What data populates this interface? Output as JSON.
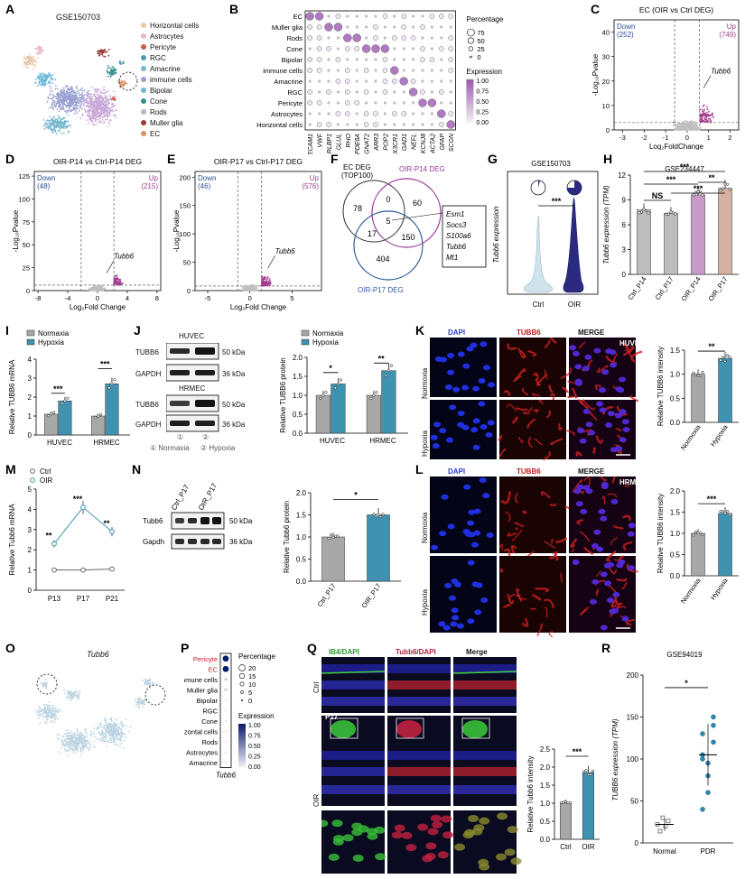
{
  "panels": {
    "A": {
      "letter": "A",
      "title": "GSE150703",
      "legend": [
        {
          "label": "Horizontal cells",
          "color": "#e6c8a8"
        },
        {
          "label": "Astrocytes",
          "color": "#e8b8c8"
        },
        {
          "label": "Pericyte",
          "color": "#c85a4a"
        },
        {
          "label": "RGC",
          "color": "#4aa0a8"
        },
        {
          "label": "Amacrine",
          "color": "#78b8d0"
        },
        {
          "label": "immune cells",
          "color": "#98a0d0"
        },
        {
          "label": "Bipolar",
          "color": "#68b8d8"
        },
        {
          "label": "Cone",
          "color": "#3a9090"
        },
        {
          "label": "Rods",
          "color": "#c8a8d8"
        },
        {
          "label": "Muller glia",
          "color": "#9a3a3a"
        },
        {
          "label": "EC",
          "color": "#d89060"
        }
      ]
    },
    "B": {
      "letter": "B",
      "rows": [
        "EC",
        "Muller glia",
        "Rods",
        "Cone",
        "Bipolar",
        "immune cells",
        "Amacrine",
        "RGC",
        "Pericyte",
        "Astrocytes",
        "Horizontal cells"
      ],
      "cols": [
        "PECAM1",
        "VWF",
        "RLBP1",
        "GLUL",
        "RHO",
        "PDE6A",
        "GNAT2",
        "ARR3",
        "POP2",
        "CX3CR1",
        "GAD1",
        "NEFL",
        "KCNJ8",
        "ACTA2",
        "GFAP",
        "SCGN"
      ],
      "legend_title_pct": "Percentage",
      "pct_levels": [
        "75",
        "50",
        "25",
        "0"
      ],
      "legend_title_expr": "Expression",
      "expr_levels": [
        "1.00",
        "0.75",
        "0.50",
        "0.25",
        "0.00"
      ]
    },
    "C": {
      "letter": "C",
      "title": "EC (OIR vs Ctrl DEG)",
      "down": "Down",
      "down_n": "(252)",
      "up": "Up",
      "up_n": "(749)",
      "gene": "Tubb6",
      "xlabel": "Log₂FoldChange",
      "ylabel": "-Log₁₀Pvalue",
      "xticks": [
        "-3",
        "-2",
        "-1",
        "0",
        "1",
        "2"
      ],
      "yticks": [
        "0",
        "10",
        "20",
        "30",
        "40"
      ]
    },
    "D": {
      "letter": "D",
      "title": "OIR-P14 vs Ctrl-P14 DEG",
      "down": "Down",
      "down_n": "(48)",
      "up": "Up",
      "up_n": "(215)",
      "gene": "Tubb6",
      "xlabel": "Log₂Fold Change",
      "ylabel": "-Log₁₀Pvalue",
      "xticks": [
        "-8",
        "-4",
        "0",
        "4",
        "8"
      ],
      "yticks": [
        "0",
        "25",
        "50",
        "75",
        "100",
        "125"
      ]
    },
    "E": {
      "letter": "E",
      "title": "OIR-P17 vs Ctrl-P17 DEG",
      "down": "Down",
      "down_n": "(46)",
      "up": "Up",
      "up_n": "(576)",
      "gene": "Tubb6",
      "xlabel": "Log₂Fold Change",
      "ylabel": "-Log₁₀Pvalue",
      "xticks": [
        "-5",
        "0",
        "5"
      ],
      "yticks": [
        "0",
        "50",
        "100",
        "150",
        "200"
      ]
    },
    "F": {
      "letter": "F",
      "set1": "EC DEG",
      "set1b": "(TOP100)",
      "set2": "OIR-P14 DEG",
      "set3": "OIR-P17 DEG",
      "n78": "78",
      "n60": "60",
      "n0": "0",
      "n5": "5",
      "n17": "17",
      "n150": "150",
      "n404": "404",
      "genes": [
        "Esm1",
        "Socs3",
        "S100a6",
        "Tubb6",
        "Mt1"
      ]
    },
    "G": {
      "letter": "G",
      "title": "GSE150703",
      "ylabel": "Tubb6 expression",
      "sig": "***",
      "xticks": [
        "Ctrl",
        "OIR"
      ]
    },
    "H": {
      "letter": "H",
      "title": "GSE234447",
      "ylabel": "Tubb6 expression (TPM)",
      "xticks": [
        "Ctrl_P14",
        "Ctrl_P17",
        "OIR_P14",
        "OIR_P17"
      ],
      "yticks": [
        "0",
        "3",
        "6",
        "9",
        "12"
      ],
      "sig": [
        "***",
        "***",
        "NS",
        "***",
        "**"
      ]
    },
    "I": {
      "letter": "I",
      "legend": [
        "Normaxia",
        "Hypoxia"
      ],
      "ylabel": "Relative TUBB6 mRNA",
      "xticks": [
        "HUVEC",
        "HRMEC"
      ],
      "yticks": [
        "0",
        "1",
        "2",
        "3",
        "4"
      ],
      "sig": [
        "***",
        "***"
      ]
    },
    "J": {
      "letter": "J",
      "cell1": "HUVEC",
      "cell2": "HRMEC",
      "band1": "TUBB6",
      "band2": "GAPDH",
      "kda1": "50 kDa",
      "kda2": "36 kDa",
      "lane_n1": "①",
      "lane_n2": "②",
      "lane_l1": "① Normaxia",
      "lane_l2": "② Hypoxia",
      "legend": [
        "Normaxia",
        "Hypoxia"
      ],
      "ylabel": "Relative TUBB6 protein",
      "xticks": [
        "HUVEC",
        "HRMEC"
      ],
      "yticks": [
        "0.0",
        "0.5",
        "1.0",
        "1.5",
        "2.0"
      ],
      "sig": [
        "*",
        "**"
      ]
    },
    "K": {
      "letter": "K",
      "cols": [
        "DAPI",
        "TUBB6",
        "MERGE"
      ],
      "cell": "HUVEC",
      "rows": [
        "Normoxia",
        "Hypoxia"
      ],
      "ylabel": "Relative TUBB6 intensity",
      "xticks": [
        "Normoxia",
        "Hypoxia"
      ],
      "yticks": [
        "0.0",
        "0.5",
        "1.0",
        "1.5"
      ],
      "sig": "**"
    },
    "L": {
      "letter": "L",
      "cols": [
        "DAPI",
        "TUBB6",
        "MERGE"
      ],
      "cell": "HRMEC",
      "rows": [
        "Normoxia",
        "Hypoxia"
      ],
      "ylabel": "Relative TUBB6 intensity",
      "xticks": [
        "Normoxia",
        "Hypoxia"
      ],
      "yticks": [
        "0.0",
        "0.5",
        "1.0",
        "1.5",
        "2.0"
      ],
      "sig": "***"
    },
    "M": {
      "letter": "M",
      "legend": [
        "Ctrl",
        "OIR"
      ],
      "ylabel": "Relative Tubb6 mRNA",
      "xticks": [
        "P13",
        "P17",
        "P21"
      ],
      "yticks": [
        "0",
        "1",
        "2",
        "3",
        "4",
        "5"
      ],
      "sig": [
        "**",
        "***",
        "**"
      ]
    },
    "N": {
      "letter": "N",
      "lanes": [
        "Ctrl_P17",
        "OIR_P17"
      ],
      "band1": "Tubb6",
      "band2": "Gapdh",
      "kda1": "50 kDa",
      "kda2": "36 kDa",
      "ylabel": "Relative Tubb6 protein",
      "xticks": [
        "Ctrl_P17",
        "OIR_P17"
      ],
      "yticks": [
        "0.0",
        "0.5",
        "1.0",
        "1.5",
        "2.0"
      ],
      "sig": "*"
    },
    "O": {
      "letter": "O",
      "title": "Tubb6"
    },
    "P": {
      "letter": "P",
      "rows": [
        "Pericyte",
        "EC",
        "immune cells",
        "Muller glia",
        "Bipolar",
        "RGC",
        "Cone",
        "Horizontal cells",
        "Rods",
        "Astrocytes",
        "Amacrine"
      ],
      "col": "Tubb6",
      "legend_title_pct": "Percentage",
      "pct_levels": [
        "20",
        "15",
        "10",
        "5",
        "0"
      ],
      "legend_title_expr": "Expression",
      "expr_levels": [
        "1.00",
        "0.75",
        "0.50",
        "0.25",
        "0.00"
      ]
    },
    "Q": {
      "letter": "Q",
      "cols": [
        "IB4/DAPI",
        "Tubb6/DAPI",
        "Merge"
      ],
      "rows": [
        "Ctrl",
        "OIR"
      ],
      "age": "P17",
      "ylabel": "Relative Tubb6 intensity",
      "xticks": [
        "Ctrl",
        "OIR"
      ],
      "yticks": [
        "0.0",
        "0.5",
        "1.0",
        "1.5",
        "2.0",
        "2.5"
      ],
      "sig": "***"
    },
    "R": {
      "letter": "R",
      "title": "GSE94019",
      "ylabel": "TUBB6 expression (TPM)",
      "xticks": [
        "Normal",
        "PDR"
      ],
      "yticks": [
        "0",
        "50",
        "100",
        "150",
        "200"
      ],
      "sig": "*"
    }
  },
  "chart_data": [
    {
      "panel": "H",
      "type": "bar",
      "categories": [
        "Ctrl_P14",
        "Ctrl_P17",
        "OIR_P14",
        "OIR_P17"
      ],
      "values": [
        7.8,
        7.4,
        9.6,
        10.4
      ],
      "errors": [
        0.3,
        0.3,
        0.3,
        0.3
      ],
      "colors": [
        "#bdbdbd",
        "#bdbdbd",
        "#c89ac8",
        "#d6b0a0"
      ],
      "ylim": [
        0,
        12
      ],
      "ylabel": "Tubb6 expression (TPM)"
    },
    {
      "panel": "I",
      "type": "bar",
      "categories": [
        "HUVEC",
        "HRMEC"
      ],
      "series": [
        {
          "name": "Normaxia",
          "values": [
            1.1,
            1.0
          ]
        },
        {
          "name": "Hypoxia",
          "values": [
            1.8,
            2.7
          ]
        }
      ],
      "ylim": [
        0,
        4
      ],
      "ylabel": "Relative TUBB6 mRNA"
    },
    {
      "panel": "J",
      "type": "bar",
      "categories": [
        "HUVEC",
        "HRMEC"
      ],
      "series": [
        {
          "name": "Normaxia",
          "values": [
            1.0,
            1.0
          ]
        },
        {
          "name": "Hypoxia",
          "values": [
            1.3,
            1.65
          ]
        }
      ],
      "ylim": [
        0,
        2
      ],
      "ylabel": "Relative TUBB6 protein"
    },
    {
      "panel": "K",
      "type": "bar",
      "categories": [
        "Normoxia",
        "Hypoxia"
      ],
      "values": [
        1.0,
        1.33
      ],
      "ylim": [
        0,
        1.5
      ],
      "ylabel": "Relative TUBB6 intensity"
    },
    {
      "panel": "L",
      "type": "bar",
      "categories": [
        "Normoxia",
        "Hypoxia"
      ],
      "values": [
        1.0,
        1.47
      ],
      "ylim": [
        0,
        2
      ],
      "ylabel": "Relative TUBB6 intensity"
    },
    {
      "panel": "M",
      "type": "line",
      "x": [
        "P13",
        "P17",
        "P21"
      ],
      "series": [
        {
          "name": "Ctrl",
          "values": [
            1.0,
            1.0,
            1.05
          ]
        },
        {
          "name": "OIR",
          "values": [
            2.3,
            4.1,
            2.9
          ]
        }
      ],
      "ylim": [
        0,
        5
      ],
      "ylabel": "Relative Tubb6 mRNA"
    },
    {
      "panel": "N",
      "type": "bar",
      "categories": [
        "Ctrl_P17",
        "OIR_P17"
      ],
      "values": [
        1.0,
        1.5
      ],
      "ylim": [
        0,
        2
      ],
      "ylabel": "Relative Tubb6 protein"
    },
    {
      "panel": "Q",
      "type": "bar",
      "categories": [
        "Ctrl",
        "OIR"
      ],
      "values": [
        1.0,
        1.85
      ],
      "ylim": [
        0,
        2.5
      ],
      "ylabel": "Relative Tubb6 intensity"
    },
    {
      "panel": "R",
      "type": "scatter",
      "categories": [
        "Normal",
        "PDR"
      ],
      "values": [
        22,
        105
      ],
      "ylim": [
        0,
        200
      ],
      "ylabel": "TUBB6 expression (TPM)"
    }
  ],
  "colors": {
    "gray": "#a8a8a8",
    "teal": "#3f93b0",
    "purple": "#8a3d8e",
    "blue": "#2f5aa8",
    "down": "#2a4f9a",
    "up": "#a23a8e"
  }
}
